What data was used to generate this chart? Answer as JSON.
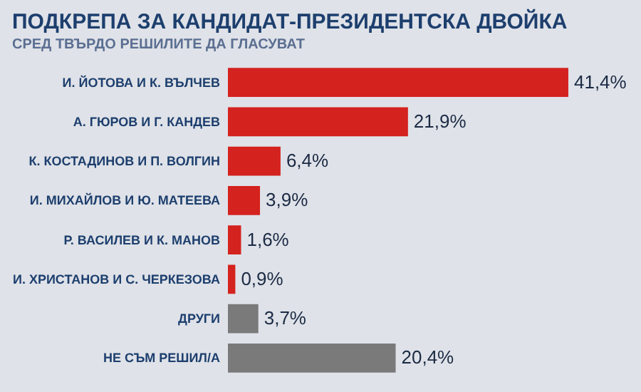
{
  "chart_data": {
    "type": "bar",
    "orientation": "horizontal",
    "title": "ПОДКРЕПА ЗА КАНДИДАТ-ПРЕЗИДЕНТСКА ДВОЙКА",
    "subtitle": "СРЕД ТВЪРДО РЕШИЛИТЕ ДА ГЛАСУВАТ",
    "categories": [
      "И. ЙОТОВА И К. ВЪЛЧЕВ",
      "А. ГЮРОВ И Г. КАНДЕВ",
      "К. КОСТАДИНОВ И П. ВОЛГИН",
      "И. МИХАЙЛОВ И Ю. МАТЕЕВА",
      "Р. ВАСИЛЕВ И К. МАНОВ",
      "И. ХРИСТАНОВ И С. ЧЕРКЕЗОВА",
      "ДРУГИ",
      "НЕ СЪМ РЕШИЛ/А"
    ],
    "values": [
      41.4,
      21.9,
      6.4,
      3.9,
      1.6,
      0.9,
      3.7,
      20.4
    ],
    "colors": [
      "#d4221f",
      "#d4221f",
      "#d4221f",
      "#d4221f",
      "#d4221f",
      "#d4221f",
      "#7a7a7a",
      "#7a7a7a"
    ],
    "value_labels": [
      "41,4%",
      "21,9%",
      "6,4%",
      "3,9%",
      "1,6%",
      "0,9%",
      "3,7%",
      "20,4%"
    ]
  }
}
